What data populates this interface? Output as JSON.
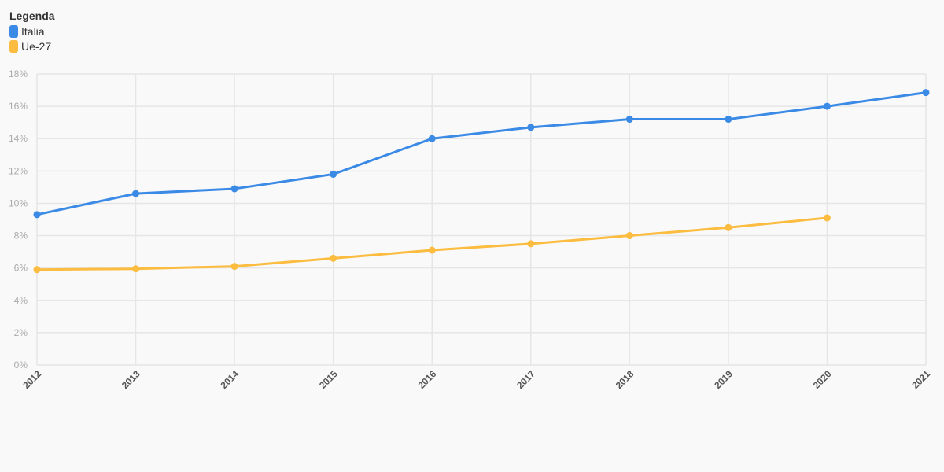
{
  "legend": {
    "title": "Legenda",
    "items": [
      {
        "label": "Italia",
        "color": "#3b8ae6"
      },
      {
        "label": "Ue-27",
        "color": "#fbbc40"
      }
    ]
  },
  "chart_data": {
    "type": "line",
    "x": [
      "2012",
      "2013",
      "2014",
      "2015",
      "2016",
      "2017",
      "2018",
      "2019",
      "2020",
      "2021"
    ],
    "ylim": [
      0,
      18
    ],
    "yticks": [
      "0%",
      "2%",
      "4%",
      "6%",
      "8%",
      "10%",
      "12%",
      "14%",
      "16%",
      "18%"
    ],
    "grid": true,
    "legend_position": "top-left",
    "series": [
      {
        "name": "Italia",
        "color": "#3b8ae6",
        "values": [
          9.3,
          10.6,
          10.9,
          11.8,
          14.0,
          14.7,
          15.2,
          15.2,
          16.0,
          16.85
        ]
      },
      {
        "name": "Ue-27",
        "color": "#fbbc40",
        "values": [
          5.9,
          5.95,
          6.1,
          6.6,
          7.1,
          7.5,
          8.0,
          8.5,
          9.1,
          null
        ]
      }
    ]
  }
}
